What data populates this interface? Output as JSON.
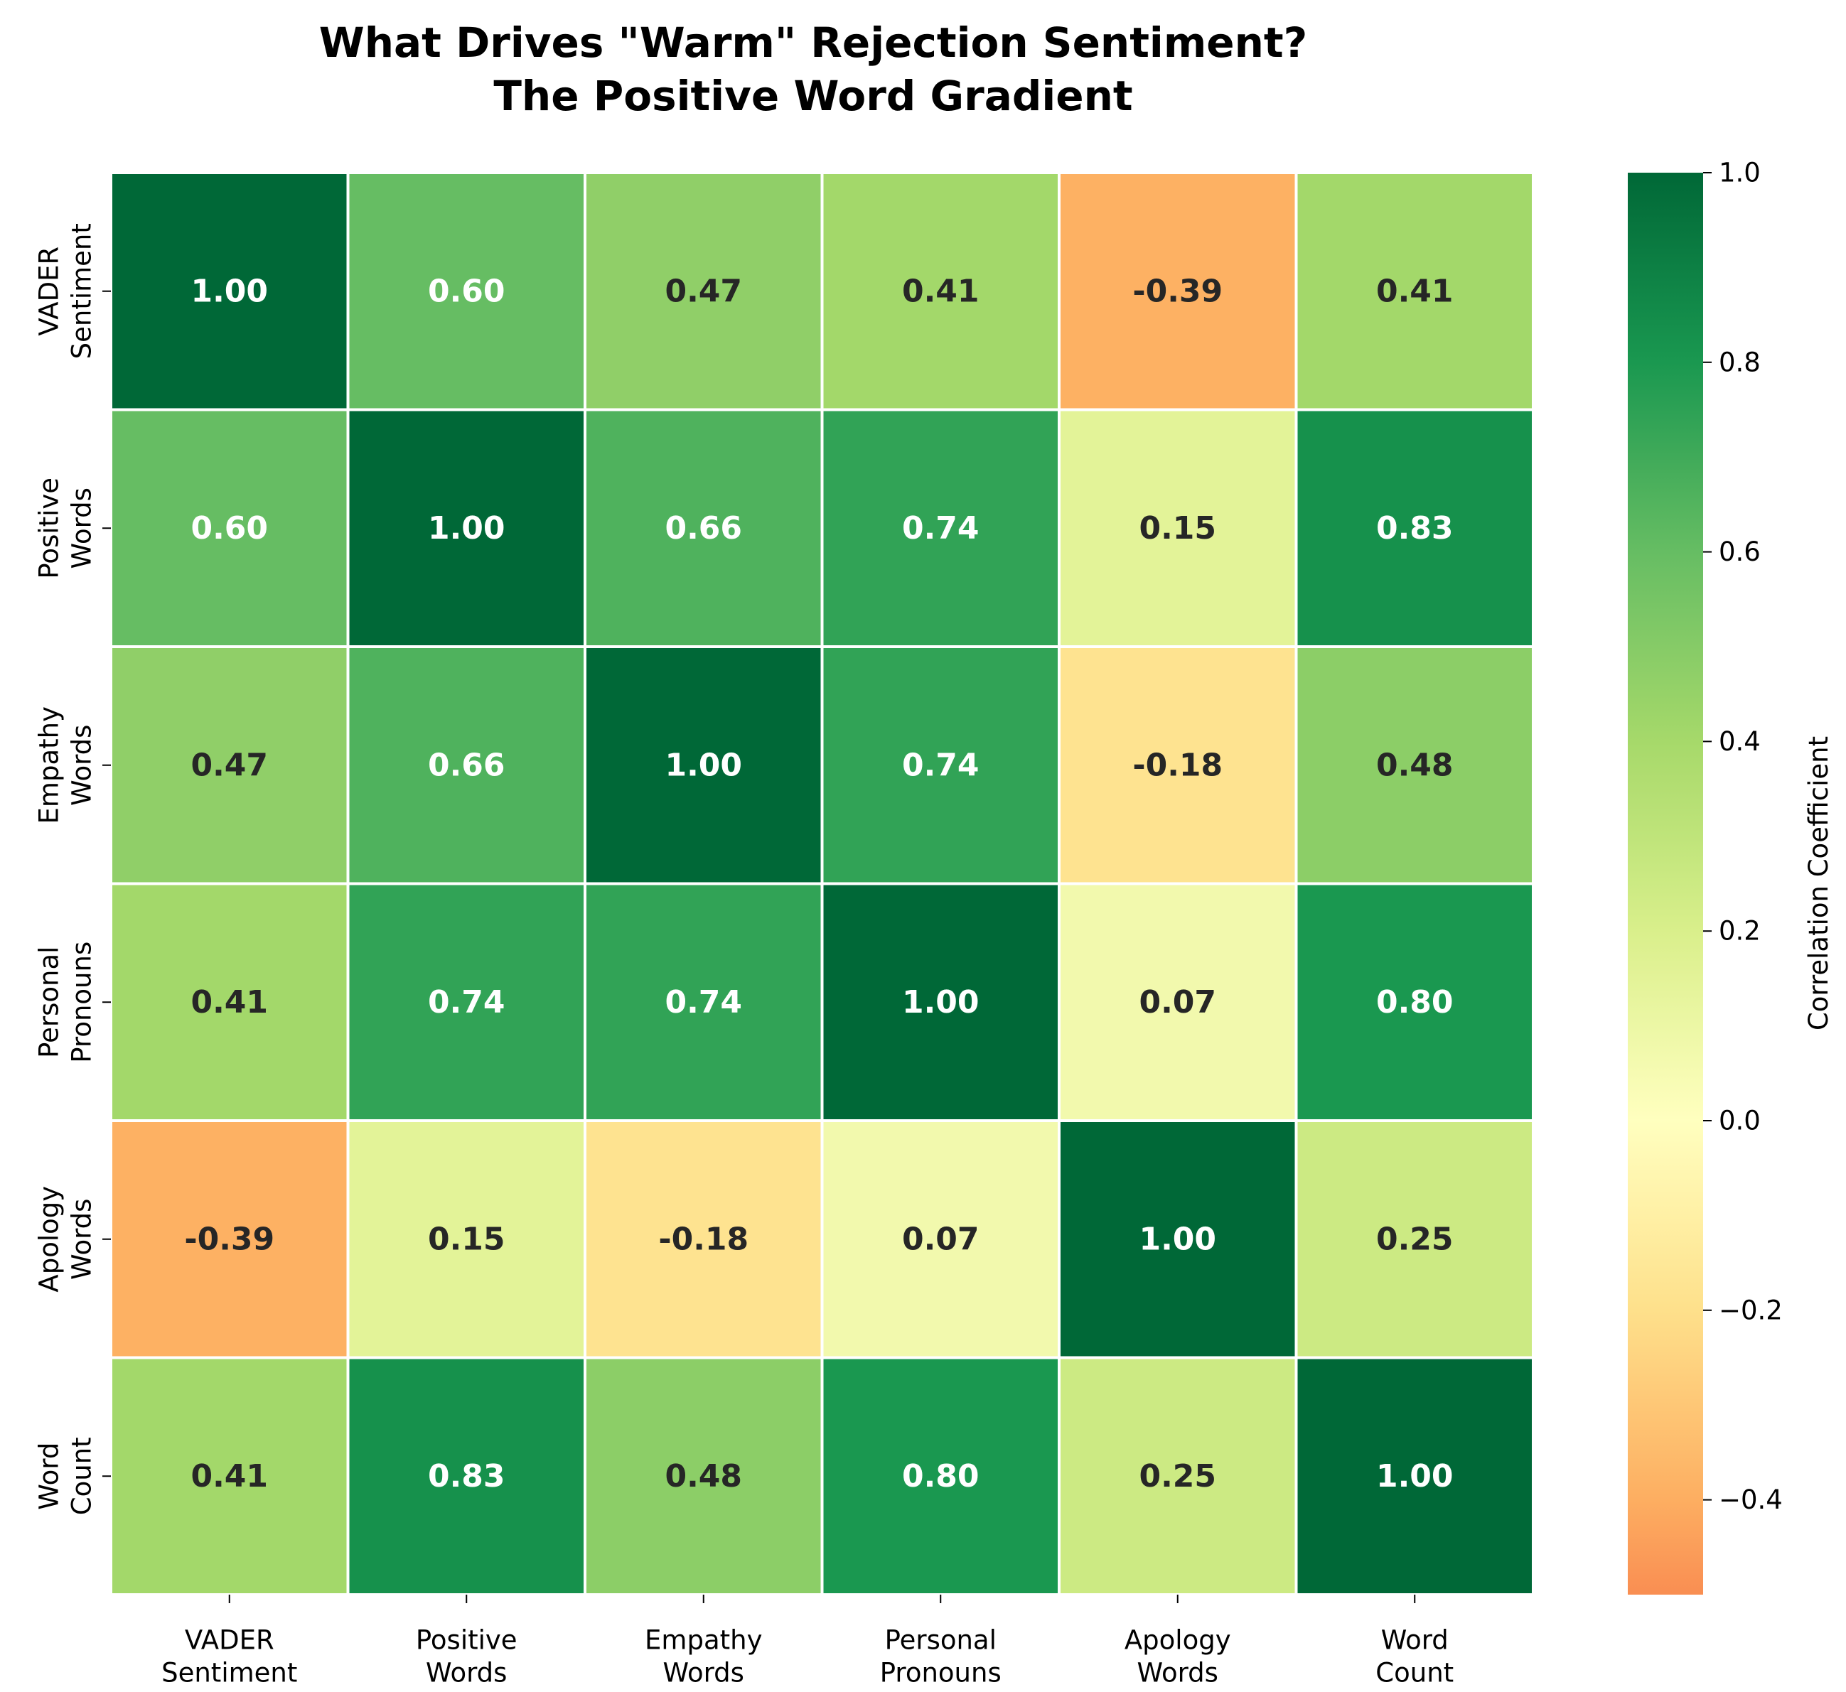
{
  "chart_data": {
    "type": "heatmap",
    "title_lines": [
      "What Drives \"Warm\" Rejection Sentiment?",
      "The Positive Word Gradient"
    ],
    "row_labels": [
      [
        "VADER",
        "Sentiment"
      ],
      [
        "Positive",
        "Words"
      ],
      [
        "Empathy",
        "Words"
      ],
      [
        "Personal",
        "Pronouns"
      ],
      [
        "Apology",
        "Words"
      ],
      [
        "Word",
        "Count"
      ]
    ],
    "col_labels": [
      [
        "VADER",
        "Sentiment"
      ],
      [
        "Positive",
        "Words"
      ],
      [
        "Empathy",
        "Words"
      ],
      [
        "Personal",
        "Pronouns"
      ],
      [
        "Apology",
        "Words"
      ],
      [
        "Word",
        "Count"
      ]
    ],
    "values": [
      [
        1.0,
        0.6,
        0.47,
        0.41,
        -0.39,
        0.41
      ],
      [
        0.6,
        1.0,
        0.66,
        0.74,
        0.15,
        0.83
      ],
      [
        0.47,
        0.66,
        1.0,
        0.74,
        -0.18,
        0.48
      ],
      [
        0.41,
        0.74,
        0.74,
        1.0,
        0.07,
        0.8
      ],
      [
        -0.39,
        0.15,
        -0.18,
        0.07,
        1.0,
        0.25
      ],
      [
        0.41,
        0.83,
        0.48,
        0.8,
        0.25,
        1.0
      ]
    ],
    "value_labels": [
      [
        "1.00",
        "0.60",
        "0.47",
        "0.41",
        "-0.39",
        "0.41"
      ],
      [
        "0.60",
        "1.00",
        "0.66",
        "0.74",
        "0.15",
        "0.83"
      ],
      [
        "0.47",
        "0.66",
        "1.00",
        "0.74",
        "-0.18",
        "0.48"
      ],
      [
        "0.41",
        "0.74",
        "0.74",
        "1.00",
        "0.07",
        "0.80"
      ],
      [
        "-0.39",
        "0.15",
        "-0.18",
        "0.07",
        "1.00",
        "0.25"
      ],
      [
        "0.41",
        "0.83",
        "0.48",
        "0.80",
        "0.25",
        "1.00"
      ]
    ],
    "colormap": "RdYlGn",
    "vmin": -0.5,
    "vmax": 1.0,
    "colorbar": {
      "label": "Correlation Coefficient",
      "ticks": [
        1.0,
        0.8,
        0.6,
        0.4,
        0.2,
        0.0,
        -0.2,
        -0.4
      ],
      "tick_labels": [
        "1.0",
        "0.8",
        "0.6",
        "0.4",
        "0.2",
        "0.0",
        "−0.2",
        "−0.4"
      ]
    },
    "grid": false,
    "legend": "colorbar-right"
  }
}
